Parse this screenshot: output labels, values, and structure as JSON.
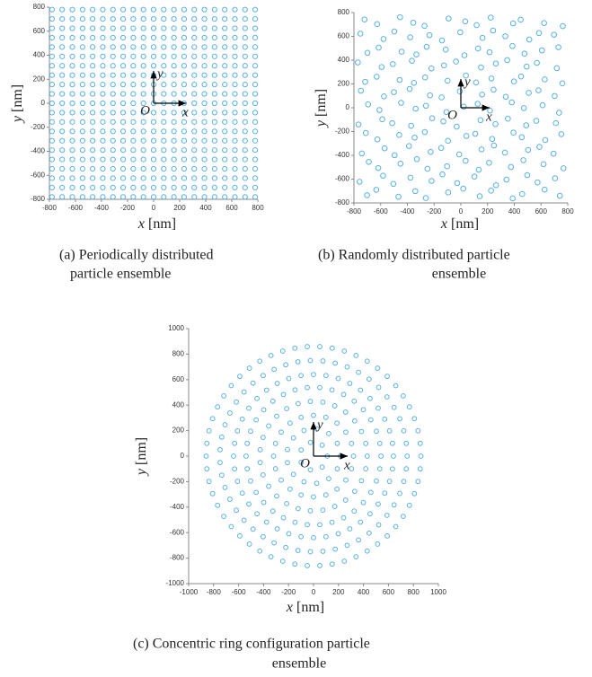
{
  "chart_data": [
    {
      "type": "grid",
      "color": "#5ab0e2",
      "xlim": [
        -800,
        800
      ],
      "ylim": [
        -800,
        800
      ],
      "xticks": [
        -800,
        -600,
        -400,
        -200,
        0,
        200,
        400,
        600,
        800
      ],
      "yticks": [
        -800,
        -600,
        -400,
        -200,
        0,
        200,
        400,
        600,
        800
      ],
      "xlabel": {
        "symbol": "x",
        "unit": "[nm]"
      },
      "ylabel": {
        "symbol": "y",
        "unit": "[nm]"
      },
      "annotations": {
        "origin": "O",
        "x": "x",
        "y": "y"
      },
      "caption": [
        "(a)  Periodically distributed",
        "particle ensemble"
      ],
      "x": [
        -780,
        -702,
        -624,
        -546,
        -468,
        -390,
        -312,
        -234,
        -156,
        -78,
        0,
        78,
        156,
        234,
        312,
        390,
        468,
        546,
        624,
        702,
        780
      ],
      "y": [
        -780,
        -702,
        -624,
        -546,
        -468,
        -390,
        -312,
        -234,
        -156,
        -78,
        0,
        78,
        156,
        234,
        312,
        390,
        468,
        546,
        624,
        702,
        780
      ]
    },
    {
      "type": "scatter",
      "color": "#5ab0e2",
      "xlim": [
        -800,
        800
      ],
      "ylim": [
        -800,
        800
      ],
      "xticks": [
        -800,
        -600,
        -400,
        -200,
        0,
        200,
        400,
        600,
        800
      ],
      "yticks": [
        -800,
        -600,
        -400,
        -200,
        0,
        200,
        400,
        600,
        800
      ],
      "xlabel": {
        "symbol": "x",
        "unit": "[nm]"
      },
      "ylabel": {
        "symbol": "y",
        "unit": "[nm]"
      },
      "annotations": {
        "origin": "O",
        "x": "x",
        "y": "y"
      },
      "caption": [
        "(b)  Randomly distributed particle",
        "ensemble"
      ],
      "x": [
        -702,
        -633,
        -467,
        -341,
        -262,
        -95,
        18,
        141,
        226,
        388,
        459,
        627,
        741,
        -758,
        -582,
        -505,
        -377,
        -219,
        -138,
        -27,
        102,
        263,
        341,
        497,
        574,
        705,
        -689,
        -618,
        -452,
        -329,
        -250,
        -103,
        36,
        134,
        211,
        375,
        468,
        619,
        768,
        -741,
        -570,
        -496,
        -388,
        -226,
        -147,
        -12,
        155,
        248,
        330,
        503,
        588,
        694,
        -711,
        -624,
        -461,
        -346,
        -270,
        -96,
        41,
        108,
        234,
        394,
        456,
        632,
        752,
        -766,
        -588,
        -514,
        -372,
        -215,
        -131,
        -31,
        147,
        259,
        352,
        489,
        565,
        711,
        -694,
        -609,
        -447,
        -338,
        -261,
        -108,
        22,
        126,
        218,
        381,
        472,
        612,
        735,
        -748,
        -575,
        -501,
        -383,
        -231,
        -144,
        -8,
        159,
        245,
        336,
        508,
        581,
        702,
        -716,
        -630,
        -458,
        -351,
        -267,
        -99,
        38,
        114,
        229,
        398,
        451,
        628,
        760,
        -771,
        -593,
        -509,
        -366,
        -220,
        -126,
        -36,
        151,
        262,
        347,
        493,
        569,
        718,
        -699,
        -615,
        -443,
        -333,
        -256,
        -113,
        27,
        129,
        215,
        386,
        476,
        607,
        730,
        -752,
        -579,
        -498,
        -379,
        -235,
        -141,
        -4,
        162,
        241,
        333,
        512,
        585,
        697,
        -721,
        -627,
        -455,
        -356,
        -272,
        -92,
        33,
        118,
        224,
        391,
        448,
        623,
        763
      ],
      "y": [
        -735,
        -690,
        -748,
        -701,
        -759,
        -712,
        -680,
        -744,
        -697,
        -762,
        -725,
        -688,
        -740,
        -622,
        -571,
        -640,
        -588,
        -615,
        -560,
        -633,
        -579,
        -651,
        -604,
        -566,
        -628,
        -593,
        -455,
        -507,
        -470,
        -432,
        -513,
        -492,
        -446,
        -521,
        -463,
        -498,
        -441,
        -475,
        -509,
        -384,
        -341,
        -399,
        -322,
        -371,
        -338,
        -392,
        -350,
        -317,
        -377,
        -355,
        -329,
        -386,
        -213,
        -266,
        -229,
        -251,
        -204,
        -278,
        -237,
        -219,
        -262,
        -209,
        -248,
        -271,
        -222,
        -141,
        -97,
        -130,
        -152,
        -88,
        -115,
        -159,
        -104,
        -137,
        -92,
        -148,
        -110,
        -129,
        28,
        -19,
        41,
        -8,
        17,
        -36,
        9,
        33,
        -24,
        45,
        -3,
        21,
        -42,
        143,
        96,
        131,
        158,
        104,
        87,
        138,
        111,
        152,
        92,
        125,
        147,
        99,
        218,
        261,
        234,
        209,
        255,
        227,
        270,
        213,
        246,
        221,
        263,
        238,
        205,
        381,
        342,
        367,
        395,
        330,
        356,
        388,
        339,
        372,
        401,
        346,
        377,
        333,
        462,
        505,
        471,
        448,
        512,
        489,
        441,
        498,
        467,
        519,
        455,
        482,
        509,
        623,
        578,
        641,
        592,
        610,
        566,
        635,
        587,
        649,
        601,
        573,
        628,
        614,
        742,
        703,
        761,
        715,
        688,
        750,
        726,
        695,
        758,
        709,
        740,
        712,
        686
      ]
    },
    {
      "type": "rings",
      "color": "#5ab0e2",
      "xlim": [
        -1000,
        1000
      ],
      "ylim": [
        -1000,
        1000
      ],
      "xticks": [
        -1000,
        -800,
        -600,
        -400,
        -200,
        0,
        200,
        400,
        600,
        800,
        1000
      ],
      "yticks": [
        -1000,
        -800,
        -600,
        -400,
        -200,
        0,
        200,
        400,
        600,
        800,
        1000
      ],
      "xlabel": {
        "symbol": "x",
        "unit": "[nm]"
      },
      "ylabel": {
        "symbol": "y",
        "unit": "[nm]"
      },
      "annotations": {
        "origin": "O",
        "x": "x",
        "y": "y"
      },
      "caption": [
        "(c)  Concentric ring configuration particle",
        "ensemble"
      ],
      "radii": [
        860,
        750,
        640,
        540,
        430,
        320,
        215,
        110
      ],
      "counts": [
        54,
        47,
        40,
        34,
        27,
        20,
        13,
        7
      ]
    }
  ]
}
